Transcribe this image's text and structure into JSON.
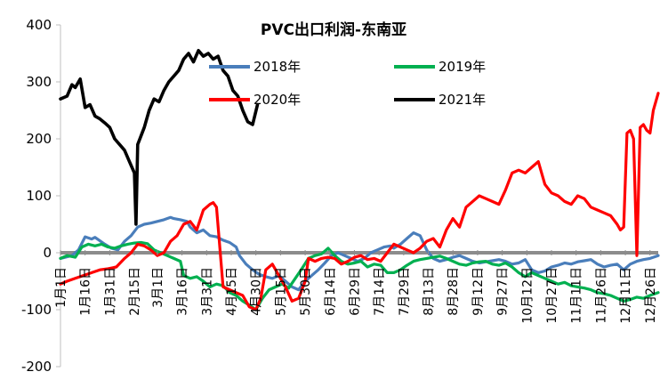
{
  "chart_data": {
    "type": "line",
    "title": "PVC出口利润-东南亚",
    "ylim": [
      -200,
      400
    ],
    "yticks": [
      400,
      300,
      200,
      100,
      0,
      -100,
      -200
    ],
    "xlim": [
      1,
      365
    ],
    "grid": false,
    "legend_position": "top-center",
    "xticks": [
      {
        "label": "1月1日",
        "day": 1
      },
      {
        "label": "1月16日",
        "day": 16
      },
      {
        "label": "1月31日",
        "day": 31
      },
      {
        "label": "2月15日",
        "day": 46
      },
      {
        "label": "3月1日",
        "day": 60
      },
      {
        "label": "3月16日",
        "day": 75
      },
      {
        "label": "3月31日",
        "day": 90
      },
      {
        "label": "4月15日",
        "day": 105
      },
      {
        "label": "4月30日",
        "day": 120
      },
      {
        "label": "5月15日",
        "day": 135
      },
      {
        "label": "5月30日",
        "day": 150
      },
      {
        "label": "6月14日",
        "day": 165
      },
      {
        "label": "6月29日",
        "day": 180
      },
      {
        "label": "7月14日",
        "day": 195
      },
      {
        "label": "7月29日",
        "day": 210
      },
      {
        "label": "8月13日",
        "day": 225
      },
      {
        "label": "8月28日",
        "day": 240
      },
      {
        "label": "9月12日",
        "day": 255
      },
      {
        "label": "9月27日",
        "day": 270
      },
      {
        "label": "10月12日",
        "day": 285
      },
      {
        "label": "10月27日",
        "day": 300
      },
      {
        "label": "11月11日",
        "day": 315
      },
      {
        "label": "11月26日",
        "day": 330
      },
      {
        "label": "12月11日",
        "day": 345
      },
      {
        "label": "12月26日",
        "day": 360
      }
    ],
    "series": [
      {
        "name": "2018年",
        "color": "#4a7ebb",
        "x": [
          1,
          8,
          12,
          16,
          20,
          22,
          28,
          32,
          36,
          40,
          44,
          48,
          52,
          56,
          60,
          64,
          68,
          70,
          74,
          78,
          80,
          84,
          88,
          92,
          96,
          100,
          104,
          108,
          110,
          114,
          118,
          122,
          126,
          130,
          134,
          138,
          142,
          146,
          150,
          154,
          158,
          162,
          166,
          170,
          174,
          178,
          182,
          186,
          190,
          194,
          198,
          202,
          204,
          208,
          212,
          216,
          220,
          224,
          228,
          232,
          236,
          240,
          244,
          248,
          252,
          256,
          260,
          264,
          268,
          272,
          276,
          280,
          284,
          288,
          292,
          296,
          300,
          304,
          308,
          312,
          316,
          320,
          324,
          328,
          332,
          336,
          340,
          344,
          348,
          352,
          356,
          360,
          365
        ],
        "y": [
          -10,
          -5,
          5,
          28,
          24,
          27,
          15,
          8,
          5,
          20,
          30,
          45,
          50,
          52,
          55,
          58,
          62,
          60,
          58,
          55,
          45,
          35,
          40,
          30,
          28,
          22,
          18,
          10,
          -5,
          -20,
          -30,
          -38,
          -42,
          -45,
          -40,
          -50,
          -60,
          -65,
          -50,
          -40,
          -30,
          -18,
          -5,
          0,
          -5,
          -10,
          -15,
          -10,
          0,
          5,
          10,
          12,
          8,
          15,
          25,
          35,
          30,
          5,
          -10,
          -15,
          -12,
          -8,
          -5,
          -10,
          -15,
          -18,
          -16,
          -14,
          -12,
          -15,
          -20,
          -18,
          -12,
          -30,
          -35,
          -32,
          -25,
          -22,
          -18,
          -20,
          -16,
          -14,
          -12,
          -20,
          -25,
          -22,
          -20,
          -30,
          -20,
          -15,
          -12,
          -10,
          -5
        ]
      },
      {
        "name": "2019年",
        "color": "#00b050",
        "x": [
          1,
          5,
          10,
          14,
          18,
          22,
          26,
          30,
          34,
          38,
          42,
          46,
          50,
          54,
          58,
          62,
          66,
          70,
          74,
          76,
          80,
          84,
          88,
          92,
          96,
          100,
          104,
          108,
          112,
          116,
          120,
          124,
          128,
          132,
          136,
          140,
          144,
          148,
          152,
          156,
          160,
          164,
          168,
          172,
          176,
          180,
          184,
          188,
          192,
          196,
          200,
          204,
          208,
          212,
          216,
          220,
          224,
          228,
          232,
          236,
          240,
          244,
          248,
          252,
          256,
          260,
          264,
          268,
          272,
          276,
          280,
          284,
          288,
          292,
          296,
          300,
          304,
          308,
          312,
          316,
          320,
          324,
          328,
          332,
          336,
          340,
          344,
          348,
          352,
          356,
          360,
          365
        ],
        "y": [
          -10,
          -5,
          -8,
          10,
          15,
          12,
          15,
          10,
          8,
          12,
          15,
          17,
          18,
          16,
          5,
          0,
          -5,
          -10,
          -15,
          -40,
          -45,
          -42,
          -50,
          -60,
          -55,
          -58,
          -70,
          -75,
          -85,
          -92,
          -100,
          -80,
          -65,
          -60,
          -55,
          -62,
          -45,
          -28,
          -10,
          -5,
          -2,
          8,
          -5,
          -15,
          -20,
          -18,
          -15,
          -25,
          -20,
          -22,
          -35,
          -35,
          -30,
          -22,
          -15,
          -12,
          -10,
          -8,
          -6,
          -10,
          -15,
          -20,
          -22,
          -18,
          -16,
          -15,
          -20,
          -22,
          -18,
          -25,
          -35,
          -42,
          -35,
          -40,
          -45,
          -50,
          -55,
          -52,
          -58,
          -60,
          -62,
          -65,
          -70,
          -72,
          -75,
          -80,
          -85,
          -82,
          -78,
          -80,
          -75,
          -70
        ]
      },
      {
        "name": "2020年",
        "color": "#ff0000",
        "x": [
          1,
          5,
          10,
          15,
          20,
          25,
          30,
          35,
          40,
          44,
          48,
          52,
          56,
          60,
          64,
          68,
          72,
          76,
          80,
          84,
          88,
          92,
          94,
          96,
          100,
          104,
          108,
          112,
          116,
          120,
          123,
          126,
          130,
          134,
          138,
          142,
          146,
          150,
          152,
          156,
          160,
          164,
          168,
          172,
          176,
          180,
          184,
          188,
          192,
          196,
          200,
          204,
          208,
          212,
          216,
          220,
          224,
          228,
          232,
          236,
          240,
          244,
          248,
          252,
          256,
          260,
          264,
          268,
          272,
          276,
          280,
          284,
          288,
          292,
          296,
          300,
          304,
          308,
          312,
          316,
          320,
          324,
          328,
          332,
          336,
          340,
          342,
          344,
          346,
          348,
          350,
          352,
          354,
          356,
          358,
          360,
          362,
          365
        ],
        "y": [
          -55,
          -50,
          -45,
          -40,
          -35,
          -30,
          -28,
          -25,
          -10,
          0,
          15,
          12,
          5,
          -5,
          0,
          20,
          30,
          50,
          55,
          40,
          75,
          85,
          88,
          80,
          -60,
          -65,
          -70,
          -75,
          -95,
          -100,
          -80,
          -30,
          -20,
          -40,
          -60,
          -85,
          -80,
          -50,
          -10,
          -15,
          -10,
          -8,
          -10,
          -20,
          -15,
          -8,
          -5,
          -12,
          -10,
          -15,
          0,
          15,
          10,
          5,
          0,
          8,
          20,
          25,
          10,
          40,
          60,
          45,
          80,
          90,
          100,
          95,
          90,
          85,
          110,
          140,
          145,
          140,
          150,
          160,
          120,
          105,
          100,
          90,
          85,
          100,
          95,
          80,
          75,
          70,
          65,
          50,
          40,
          45,
          210,
          215,
          200,
          -5,
          220,
          225,
          215,
          210,
          250,
          280
        ]
      },
      {
        "name": "2021年",
        "color": "#000000",
        "x": [
          1,
          5,
          8,
          10,
          13,
          16,
          19,
          22,
          25,
          28,
          31,
          34,
          37,
          40,
          43,
          46,
          47,
          48,
          50,
          52,
          55,
          58,
          61,
          64,
          67,
          70,
          73,
          76,
          79,
          82,
          85,
          88,
          91,
          94,
          97,
          100,
          103,
          106,
          109,
          112,
          115,
          118,
          121
        ],
        "y": [
          270,
          275,
          295,
          290,
          305,
          255,
          260,
          240,
          235,
          228,
          220,
          200,
          190,
          180,
          160,
          140,
          50,
          190,
          205,
          220,
          250,
          270,
          265,
          285,
          300,
          310,
          320,
          340,
          350,
          335,
          355,
          345,
          350,
          340,
          345,
          320,
          310,
          285,
          275,
          250,
          230,
          225,
          260
        ]
      }
    ]
  }
}
